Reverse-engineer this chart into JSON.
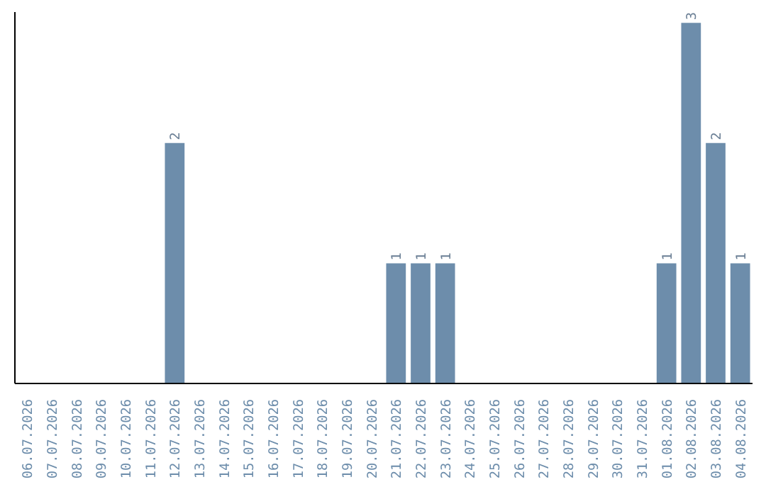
{
  "chart_data": {
    "type": "bar",
    "categories": [
      "06.07.2026",
      "07.07.2026",
      "08.07.2026",
      "09.07.2026",
      "10.07.2026",
      "11.07.2026",
      "12.07.2026",
      "13.07.2026",
      "14.07.2026",
      "15.07.2026",
      "16.07.2026",
      "17.07.2026",
      "18.07.2026",
      "19.07.2026",
      "20.07.2026",
      "21.07.2026",
      "22.07.2026",
      "23.07.2026",
      "24.07.2026",
      "25.07.2026",
      "26.07.2026",
      "27.07.2026",
      "28.07.2026",
      "29.07.2026",
      "30.07.2026",
      "31.07.2026",
      "01.08.2026",
      "02.08.2026",
      "03.08.2026",
      "04.08.2026"
    ],
    "values": [
      0,
      0,
      0,
      0,
      0,
      0,
      2,
      0,
      0,
      0,
      0,
      0,
      0,
      0,
      0,
      1,
      1,
      1,
      0,
      0,
      0,
      0,
      0,
      0,
      0,
      0,
      1,
      3,
      2,
      1
    ],
    "value_labels": [
      null,
      null,
      null,
      null,
      null,
      null,
      "2",
      null,
      null,
      null,
      null,
      null,
      null,
      null,
      null,
      "1",
      "1",
      "1",
      null,
      null,
      null,
      null,
      null,
      null,
      null,
      null,
      "1",
      "3",
      "2",
      "1"
    ],
    "color": "#6d8dab",
    "grid": false
  }
}
